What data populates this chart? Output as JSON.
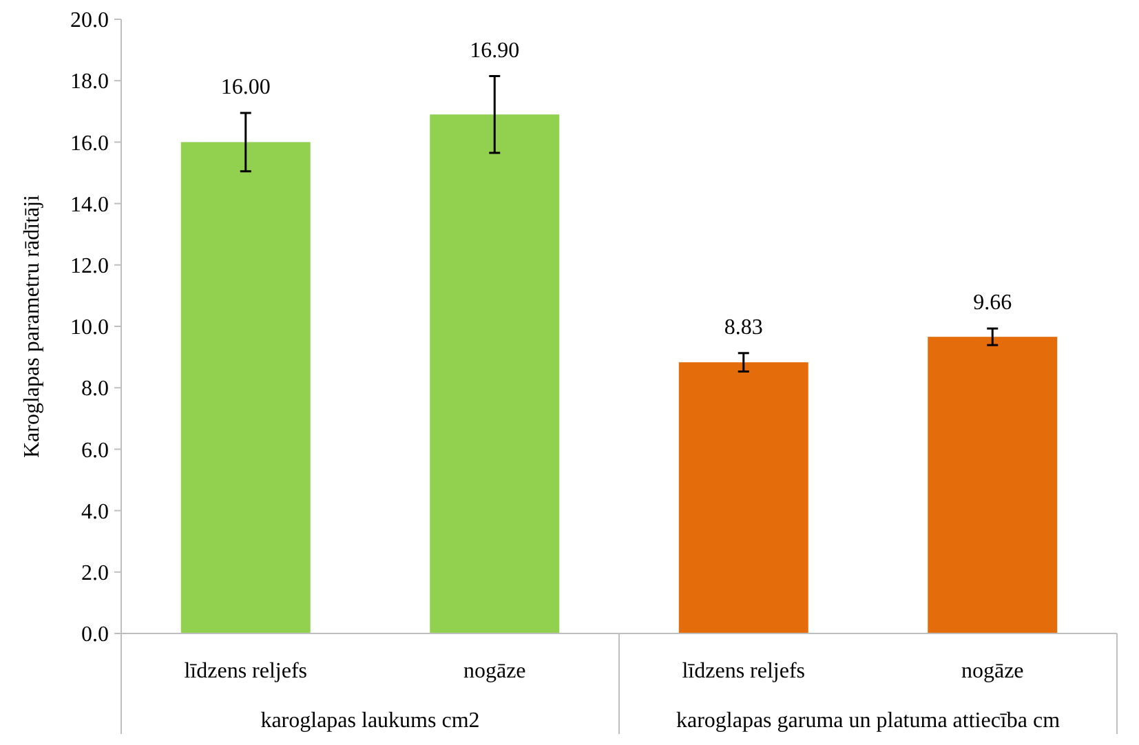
{
  "chart_data": {
    "type": "bar",
    "ylabel": "Karoglapas parametru rādītāji",
    "categories": [
      "līdzens reljefs",
      "nogāze",
      "līdzens reljefs",
      "nogāze"
    ],
    "values": [
      16.0,
      16.9,
      8.83,
      9.66
    ],
    "colors": [
      "#92d050",
      "#92d050",
      "#e46c0a",
      "#e46c0a"
    ],
    "errors": [
      0.95,
      1.25,
      0.3,
      0.27
    ],
    "value_labels": [
      "16.00",
      "16.90",
      "8.83",
      "9.66"
    ],
    "ylim": [
      0,
      20
    ],
    "yticks": [
      {
        "value": 0,
        "label": "0.0"
      },
      {
        "value": 2,
        "label": "2.0"
      },
      {
        "value": 4,
        "label": "4.0"
      },
      {
        "value": 6,
        "label": "6.0"
      },
      {
        "value": 8,
        "label": "8.0"
      },
      {
        "value": 10,
        "label": "10.0"
      },
      {
        "value": 12,
        "label": "12.0"
      },
      {
        "value": 14,
        "label": "14.0"
      },
      {
        "value": 16,
        "label": "16.0"
      },
      {
        "value": 18,
        "label": "18.0"
      },
      {
        "value": 20,
        "label": "20.0"
      }
    ],
    "annotations": [
      "karoglapas laukums cm2",
      "karoglapas garuma un platuma attiecība cm"
    ]
  }
}
